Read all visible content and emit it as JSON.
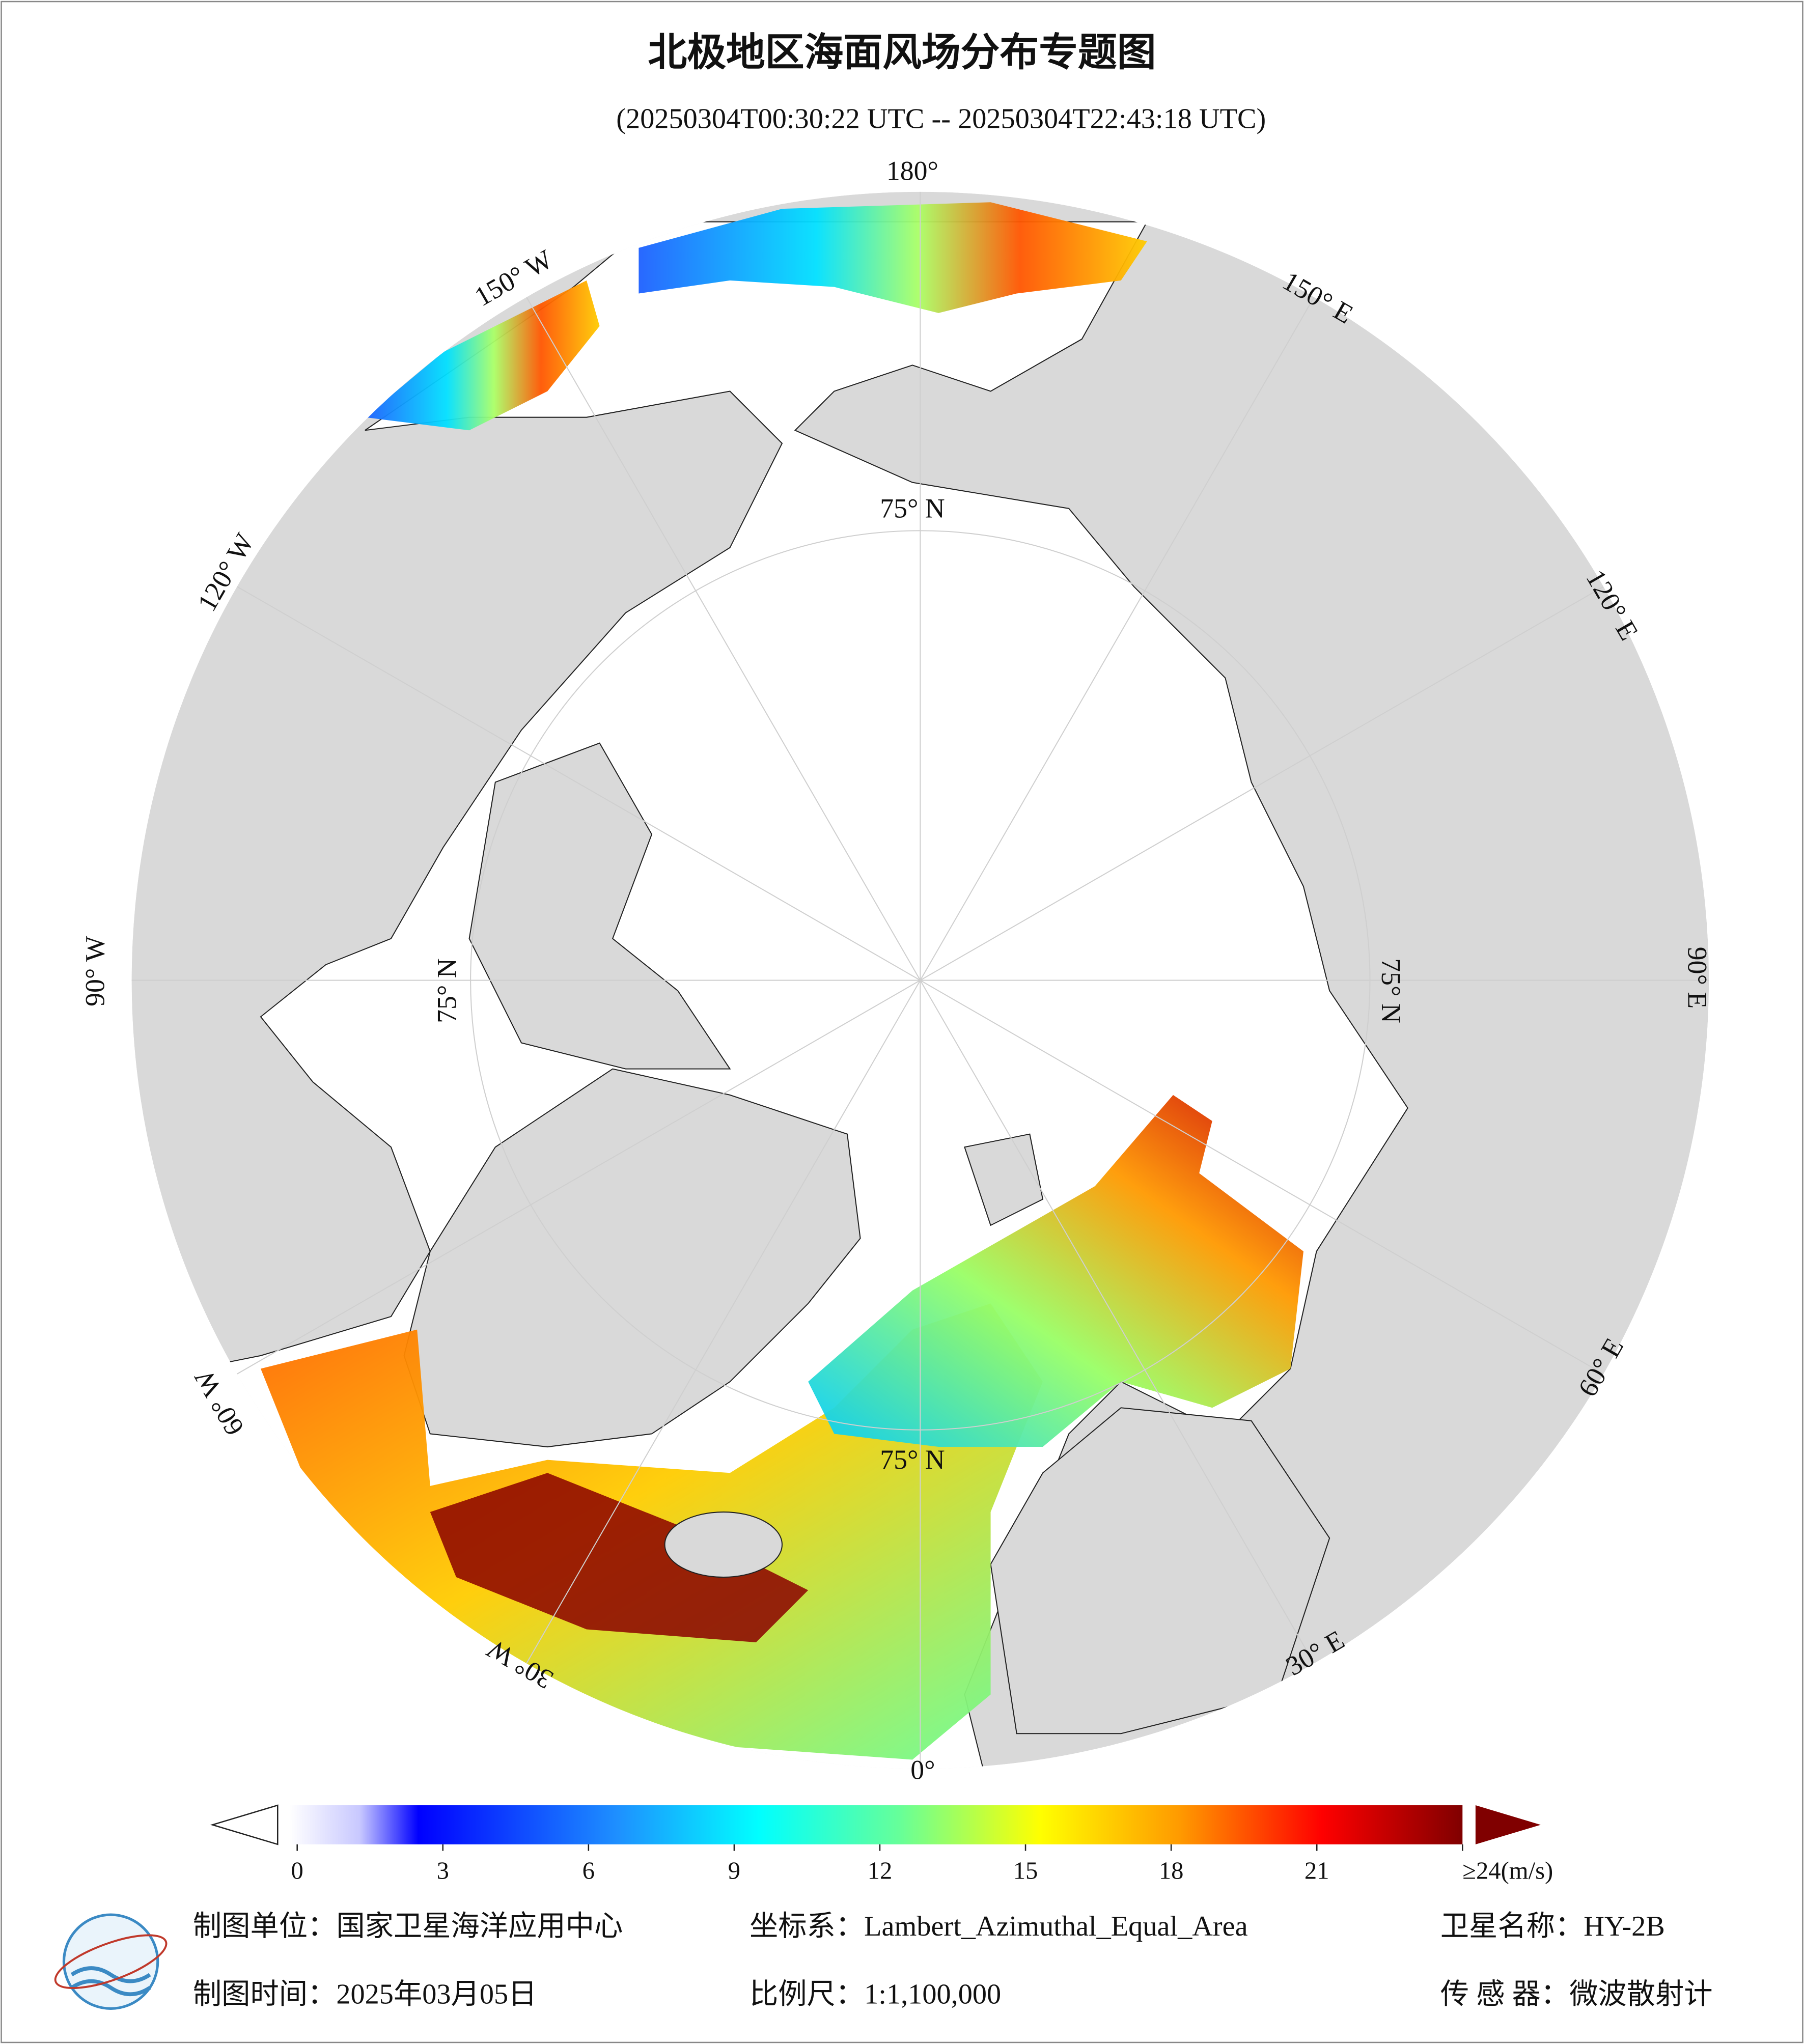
{
  "header": {
    "title": "北极地区海面风场分布专题图",
    "subtitle": "(20250304T00:30:22 UTC -- 20250304T22:43:18 UTC)"
  },
  "map": {
    "longitude_labels": [
      "180°",
      "150° W",
      "120° W",
      "90° W",
      "60° W",
      "30° W",
      "0°",
      "30° E",
      "60° E",
      "90° E",
      "120° E",
      "150° E"
    ],
    "latitude_labels": [
      "75° N",
      "75° N",
      "75° N",
      "75° N"
    ]
  },
  "colorbar": {
    "clim": [
      0,
      24
    ],
    "ticks": [
      0,
      3,
      6,
      9,
      12,
      15,
      18,
      21,
      {
        "value": 24,
        "label": "≥24(m/s)"
      }
    ]
  },
  "footer": {
    "unit": "制图单位：国家卫星海洋应用中心",
    "coordinate_system": "坐标系：Lambert_Azimuthal_Equal_Area",
    "satellite": "卫星名称：HY-2B",
    "date": "制图时间：2025年03月05日",
    "scale": "比例尺：1:1,100,000",
    "sensor": "传 感 器：微波散射计"
  }
}
